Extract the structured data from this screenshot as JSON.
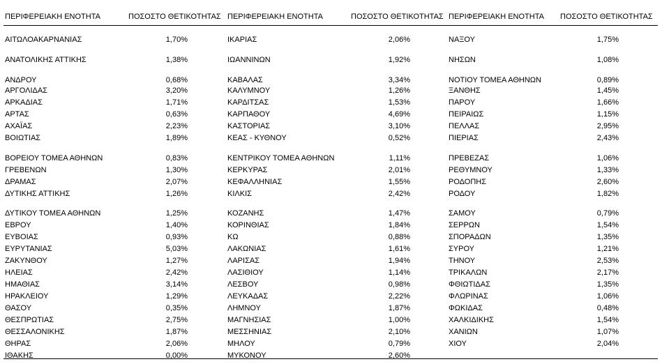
{
  "headers": {
    "region": "ΠΕΡΙΦΕΡΕΙΑΚΗ ΕΝΟΤΗΤΑ",
    "percent": "ΠΟΣΟΣΤΟ ΘΕΤΙΚΟΤΗΤΑΣ"
  },
  "columns": [
    [
      {
        "name": "ΑΙΤΩΛΟΑΚΑΡΝΑΝΙΑΣ",
        "value": "1,70%"
      },
      {
        "name": "ΑΝΑΤΟΛΙΚΗΣ ΑΤΤΙΚΗΣ",
        "value": "1,38%"
      },
      {
        "name": "ΑΝΔΡΟΥ",
        "value": "0,68%"
      },
      {
        "name": "ΑΡΓΟΛΙΔΑΣ",
        "value": "3,20%"
      },
      {
        "name": "ΑΡΚΑΔΙΑΣ",
        "value": "1,71%"
      },
      {
        "name": "ΑΡΤΑΣ",
        "value": "0,63%"
      },
      {
        "name": "ΑΧΑΪΑΣ",
        "value": "2,23%"
      },
      {
        "name": "ΒΟΙΩΤΙΑΣ",
        "value": "1,89%"
      },
      {
        "name": "ΒΟΡΕΙΟΥ ΤΟΜΕΑ ΑΘΗΝΩΝ",
        "value": "0,83%"
      },
      {
        "name": "ΓΡΕΒΕΝΩΝ",
        "value": "1,30%"
      },
      {
        "name": "ΔΡΑΜΑΣ",
        "value": "2,07%"
      },
      {
        "name": "ΔΥΤΙΚΗΣ ΑΤΤΙΚΗΣ",
        "value": "1,26%"
      },
      {
        "name": "ΔΥΤΙΚΟΥ ΤΟΜΕΑ ΑΘΗΝΩΝ",
        "value": "1,25%"
      },
      {
        "name": "ΕΒΡΟΥ",
        "value": "1,40%"
      },
      {
        "name": "ΕΥΒΟΙΑΣ",
        "value": "0,93%"
      },
      {
        "name": "ΕΥΡΥΤΑΝΙΑΣ",
        "value": "5,03%"
      },
      {
        "name": "ΖΑΚΥΝΘΟΥ",
        "value": "1,27%"
      },
      {
        "name": "ΗΛΕΙΑΣ",
        "value": "2,42%"
      },
      {
        "name": "ΗΜΑΘΙΑΣ",
        "value": "3,14%"
      },
      {
        "name": "ΗΡΑΚΛΕΙΟΥ",
        "value": "1,29%"
      },
      {
        "name": "ΘΑΣΟΥ",
        "value": "0,35%"
      },
      {
        "name": "ΘΕΣΠΡΩΤΙΑΣ",
        "value": "2,75%"
      },
      {
        "name": "ΘΕΣΣΑΛΟΝΙΚΗΣ",
        "value": "1,87%"
      },
      {
        "name": "ΘΗΡΑΣ",
        "value": "2,06%"
      },
      {
        "name": "ΙΘΑΚΗΣ",
        "value": "0,00%"
      }
    ],
    [
      {
        "name": "ΙΚΑΡΙΑΣ",
        "value": "2,06%"
      },
      {
        "name": "ΙΩΑΝΝΙΝΩΝ",
        "value": "1,92%"
      },
      {
        "name": "ΚΑΒΑΛΑΣ",
        "value": "3,34%"
      },
      {
        "name": "ΚΑΛΥΜΝΟΥ",
        "value": "1,26%"
      },
      {
        "name": "ΚΑΡΔΙΤΣΑΣ",
        "value": "1,53%"
      },
      {
        "name": "ΚΑΡΠΑΘΟΥ",
        "value": "4,69%"
      },
      {
        "name": "ΚΑΣΤΟΡΙΑΣ",
        "value": "3,10%"
      },
      {
        "name": "ΚΕΑΣ - ΚΥΘΝΟΥ",
        "value": "0,52%"
      },
      {
        "name": "ΚΕΝΤΡΙΚΟΥ ΤΟΜΕΑ ΑΘΗΝΩΝ",
        "value": "1,11%"
      },
      {
        "name": "ΚΕΡΚΥΡΑΣ",
        "value": "2,01%"
      },
      {
        "name": "ΚΕΦΑΛΛΗΝΙΑΣ",
        "value": "1,55%"
      },
      {
        "name": "ΚΙΛΚΙΣ",
        "value": "2,42%"
      },
      {
        "name": "ΚΟΖΑΝΗΣ",
        "value": "1,47%"
      },
      {
        "name": "ΚΟΡΙΝΘΙΑΣ",
        "value": "1,84%"
      },
      {
        "name": "ΚΩ",
        "value": "0,88%"
      },
      {
        "name": "ΛΑΚΩΝΙΑΣ",
        "value": "1,61%"
      },
      {
        "name": "ΛΑΡΙΣΑΣ",
        "value": "1,94%"
      },
      {
        "name": "ΛΑΣΙΘΙΟΥ",
        "value": "1,14%"
      },
      {
        "name": "ΛΕΣΒΟΥ",
        "value": "0,98%"
      },
      {
        "name": "ΛΕΥΚΑΔΑΣ",
        "value": "2,22%"
      },
      {
        "name": "ΛΗΜΝΟΥ",
        "value": "1,87%"
      },
      {
        "name": "ΜΑΓΝΗΣΙΑΣ",
        "value": "1,00%"
      },
      {
        "name": "ΜΕΣΣΗΝΙΑΣ",
        "value": "2,10%"
      },
      {
        "name": "ΜΗΛΟΥ",
        "value": "0,79%"
      },
      {
        "name": "ΜΥΚΟΝΟΥ",
        "value": "2,60%"
      }
    ],
    [
      {
        "name": "ΝΑΞΟΥ",
        "value": "1,75%"
      },
      {
        "name": "ΝΗΣΩΝ",
        "value": "1,08%"
      },
      {
        "name": "ΝΟΤΙΟΥ ΤΟΜΕΑ ΑΘΗΝΩΝ",
        "value": "0,89%"
      },
      {
        "name": "ΞΑΝΘΗΣ",
        "value": "1,45%"
      },
      {
        "name": "ΠΑΡΟΥ",
        "value": "1,66%"
      },
      {
        "name": "ΠΕΙΡΑΙΩΣ",
        "value": "1,15%"
      },
      {
        "name": "ΠΕΛΛΑΣ",
        "value": "2,95%"
      },
      {
        "name": "ΠΙΕΡΙΑΣ",
        "value": "2,43%"
      },
      {
        "name": "ΠΡΕΒΕΖΑΣ",
        "value": "1,06%"
      },
      {
        "name": "ΡΕΘΥΜΝΟΥ",
        "value": "1,33%"
      },
      {
        "name": "ΡΟΔΟΠΗΣ",
        "value": "2,60%"
      },
      {
        "name": "ΡΟΔΟΥ",
        "value": "1,82%"
      },
      {
        "name": "ΣΑΜΟΥ",
        "value": "0,79%"
      },
      {
        "name": "ΣΕΡΡΩΝ",
        "value": "1,54%"
      },
      {
        "name": "ΣΠΟΡΑΔΩΝ",
        "value": "1,35%"
      },
      {
        "name": "ΣΥΡΟΥ",
        "value": "1,21%"
      },
      {
        "name": "ΤΗΝΟΥ",
        "value": "2,53%"
      },
      {
        "name": "ΤΡΙΚΑΛΩΝ",
        "value": "2,17%"
      },
      {
        "name": "ΦΘΙΩΤΙΔΑΣ",
        "value": "1,35%"
      },
      {
        "name": "ΦΛΩΡΙΝΑΣ",
        "value": "1,06%"
      },
      {
        "name": "ΦΩΚΙΔΑΣ",
        "value": "0,48%"
      },
      {
        "name": "ΧΑΛΚΙΔΙΚΗΣ",
        "value": "1,54%"
      },
      {
        "name": "ΧΑΝΙΩΝ",
        "value": "1,07%"
      },
      {
        "name": "ΧΙΟΥ",
        "value": "2,04%"
      }
    ]
  ]
}
